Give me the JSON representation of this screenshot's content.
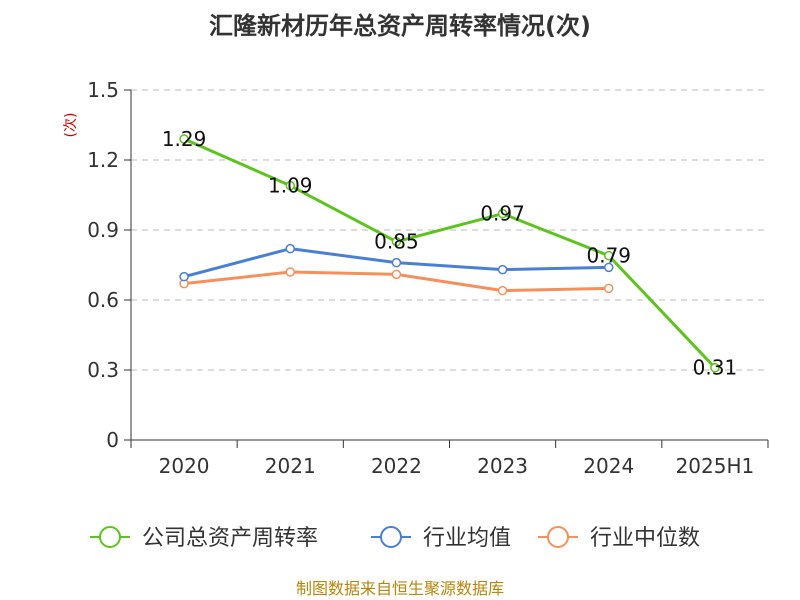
{
  "chart_data": {
    "type": "line",
    "title": "汇隆新材历年总资产周转率情况(次)",
    "ylabel": "(次)",
    "categories": [
      "2020",
      "2021",
      "2022",
      "2023",
      "2024",
      "2025H1"
    ],
    "ylim": [
      0,
      1.5
    ],
    "yticks": [
      "0",
      "0.3",
      "0.6",
      "0.9",
      "1.2",
      "1.5"
    ],
    "grid": true,
    "legend_position": "bottom",
    "series": [
      {
        "name": "公司总资产周转率",
        "color": "#5cc41d",
        "values": [
          1.29,
          1.09,
          0.85,
          0.97,
          0.79,
          0.31
        ],
        "labels": [
          "1.29",
          "1.09",
          "0.85",
          "0.97",
          "0.79",
          "0.31"
        ]
      },
      {
        "name": "行业均值",
        "color": "#4a7fd6",
        "values": [
          0.7,
          0.82,
          0.76,
          0.73,
          0.74,
          null
        ]
      },
      {
        "name": "行业中位数",
        "color": "#f5905c",
        "values": [
          0.67,
          0.72,
          0.71,
          0.64,
          0.65,
          null
        ]
      }
    ],
    "source": "制图数据来自恒生聚源数据库"
  }
}
